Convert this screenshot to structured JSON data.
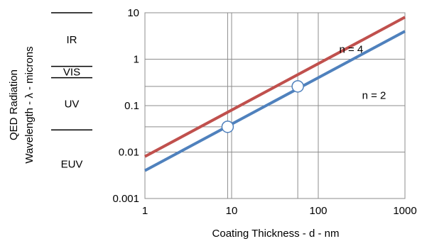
{
  "chart_data": {
    "type": "line",
    "xlabel": "Coating Thickness - d - nm",
    "ylabel_line1": "QED Radiation",
    "ylabel_line2": "Wavelength - λ - microns",
    "x_scale": "log",
    "y_scale": "log",
    "xlim": [
      1,
      1000
    ],
    "ylim": [
      0.001,
      10
    ],
    "x_ticks": [
      1,
      10,
      100,
      1000
    ],
    "x_tick_labels": [
      "1",
      "10",
      "100",
      "1000"
    ],
    "y_ticks": [
      0.001,
      0.01,
      0.1,
      1,
      10
    ],
    "y_tick_labels": [
      "0.001",
      "0.01",
      "0.1",
      "1",
      "10"
    ],
    "grid": true,
    "series": [
      {
        "name": "n = 4",
        "color": "#c0504d",
        "x": [
          1,
          1000
        ],
        "y": [
          0.008,
          8
        ]
      },
      {
        "name": "n = 2",
        "color": "#4f81bd",
        "x": [
          1,
          1000
        ],
        "y": [
          0.004,
          4
        ]
      }
    ],
    "markers": [
      {
        "x": 9,
        "y": 0.035
      },
      {
        "x": 58,
        "y": 0.26
      }
    ],
    "reference_lines": [
      {
        "x": 9,
        "y": 0.035
      },
      {
        "x": 58,
        "y": 0.26
      }
    ],
    "bands": [
      {
        "label": "IR",
        "y_top": 10,
        "y_bottom": 0.7
      },
      {
        "label": "VIS",
        "y_top": 0.7,
        "y_bottom": 0.4
      },
      {
        "label": "UV",
        "y_top": 0.4,
        "y_bottom": 0.03
      },
      {
        "label": "EUV",
        "y_top": 0.03,
        "y_bottom": 0.001
      }
    ],
    "band_boundaries": [
      10,
      0.7,
      0.4,
      0.03
    ]
  }
}
